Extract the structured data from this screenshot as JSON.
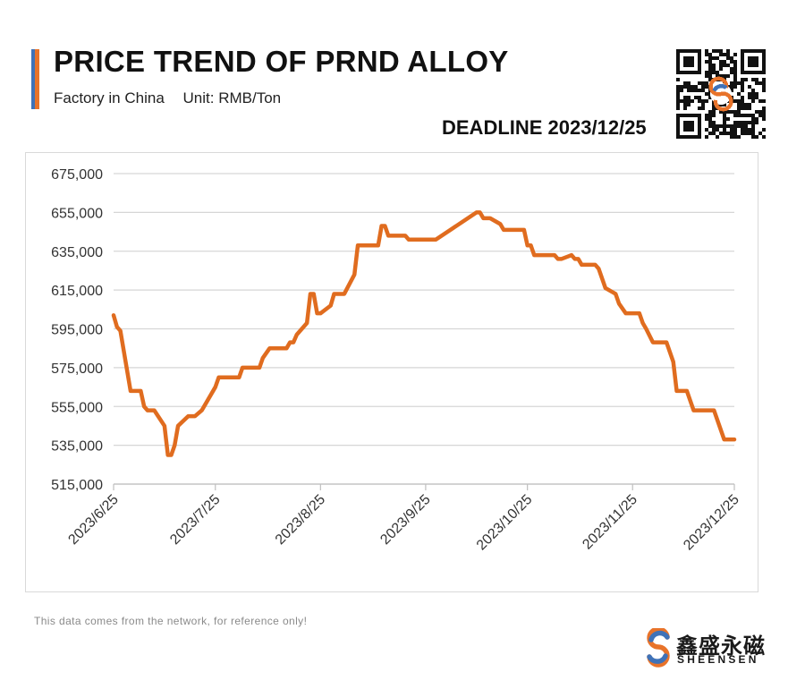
{
  "header": {
    "title": "PRICE TREND OF PRND ALLOY",
    "subtitle_location": "Factory in China",
    "subtitle_unit": "Unit: RMB/Ton",
    "deadline": "DEADLINE 2023/12/25"
  },
  "footer": {
    "note": "This data comes from the network, for reference only!"
  },
  "brand": {
    "name_zh": "鑫盛永磁",
    "name_en": "SHEENSEN"
  },
  "colors": {
    "line": "#e06c1f",
    "accent_blue": "#3f72b8",
    "accent_orange": "#e8732a",
    "grid": "#d6d6d6"
  },
  "chart_data": {
    "type": "line",
    "title": "PRICE TREND OF PRND ALLOY",
    "xlabel": "",
    "ylabel": "",
    "grid": true,
    "ylim": [
      515000,
      675000
    ],
    "yticks": [
      515000,
      535000,
      555000,
      575000,
      595000,
      615000,
      635000,
      655000,
      675000
    ],
    "ytick_labels": [
      "515,000",
      "535,000",
      "555,000",
      "575,000",
      "595,000",
      "615,000",
      "635,000",
      "655,000",
      "675,000"
    ],
    "xtick_labels": [
      "2023/6/25",
      "2023/7/25",
      "2023/8/25",
      "2023/9/25",
      "2023/10/25",
      "2023/11/25",
      "2023/12/25"
    ],
    "xtick_dates": [
      "2023-06-25",
      "2023-07-25",
      "2023-08-25",
      "2023-09-25",
      "2023-10-25",
      "2023-11-25",
      "2023-12-25"
    ],
    "series": [
      {
        "points": [
          [
            "2023-06-25",
            602000
          ],
          [
            "2023-06-26",
            596000
          ],
          [
            "2023-06-27",
            594000
          ],
          [
            "2023-06-30",
            563000
          ],
          [
            "2023-07-03",
            563000
          ],
          [
            "2023-07-04",
            555000
          ],
          [
            "2023-07-05",
            553000
          ],
          [
            "2023-07-07",
            553000
          ],
          [
            "2023-07-10",
            545000
          ],
          [
            "2023-07-11",
            530000
          ],
          [
            "2023-07-12",
            530000
          ],
          [
            "2023-07-13",
            535000
          ],
          [
            "2023-07-14",
            545000
          ],
          [
            "2023-07-17",
            550000
          ],
          [
            "2023-07-19",
            550000
          ],
          [
            "2023-07-21",
            553000
          ],
          [
            "2023-07-25",
            565000
          ],
          [
            "2023-07-26",
            570000
          ],
          [
            "2023-08-01",
            570000
          ],
          [
            "2023-08-02",
            575000
          ],
          [
            "2023-08-07",
            575000
          ],
          [
            "2023-08-08",
            580000
          ],
          [
            "2023-08-10",
            585000
          ],
          [
            "2023-08-15",
            585000
          ],
          [
            "2023-08-16",
            588000
          ],
          [
            "2023-08-17",
            588000
          ],
          [
            "2023-08-18",
            592000
          ],
          [
            "2023-08-21",
            598000
          ],
          [
            "2023-08-22",
            613000
          ],
          [
            "2023-08-23",
            613000
          ],
          [
            "2023-08-24",
            603000
          ],
          [
            "2023-08-25",
            603000
          ],
          [
            "2023-08-28",
            607000
          ],
          [
            "2023-08-29",
            613000
          ],
          [
            "2023-09-01",
            613000
          ],
          [
            "2023-09-04",
            623000
          ],
          [
            "2023-09-05",
            638000
          ],
          [
            "2023-09-11",
            638000
          ],
          [
            "2023-09-12",
            648000
          ],
          [
            "2023-09-13",
            648000
          ],
          [
            "2023-09-14",
            643000
          ],
          [
            "2023-09-19",
            643000
          ],
          [
            "2023-09-20",
            641000
          ],
          [
            "2023-09-28",
            641000
          ],
          [
            "2023-10-10",
            655000
          ],
          [
            "2023-10-11",
            655000
          ],
          [
            "2023-10-12",
            652000
          ],
          [
            "2023-10-14",
            652000
          ],
          [
            "2023-10-17",
            649000
          ],
          [
            "2023-10-18",
            646000
          ],
          [
            "2023-10-24",
            646000
          ],
          [
            "2023-10-25",
            638000
          ],
          [
            "2023-10-26",
            638000
          ],
          [
            "2023-10-27",
            633000
          ],
          [
            "2023-11-02",
            633000
          ],
          [
            "2023-11-03",
            631000
          ],
          [
            "2023-11-04",
            631000
          ],
          [
            "2023-11-07",
            633000
          ],
          [
            "2023-11-08",
            631000
          ],
          [
            "2023-11-09",
            631000
          ],
          [
            "2023-11-10",
            628000
          ],
          [
            "2023-11-14",
            628000
          ],
          [
            "2023-11-15",
            626000
          ],
          [
            "2023-11-17",
            616000
          ],
          [
            "2023-11-20",
            613000
          ],
          [
            "2023-11-21",
            608000
          ],
          [
            "2023-11-23",
            603000
          ],
          [
            "2023-11-27",
            603000
          ],
          [
            "2023-11-28",
            598000
          ],
          [
            "2023-11-29",
            595000
          ],
          [
            "2023-12-01",
            588000
          ],
          [
            "2023-12-05",
            588000
          ],
          [
            "2023-12-07",
            578000
          ],
          [
            "2023-12-08",
            563000
          ],
          [
            "2023-12-11",
            563000
          ],
          [
            "2023-12-13",
            553000
          ],
          [
            "2023-12-19",
            553000
          ],
          [
            "2023-12-22",
            538000
          ],
          [
            "2023-12-25",
            538000
          ]
        ]
      }
    ]
  }
}
